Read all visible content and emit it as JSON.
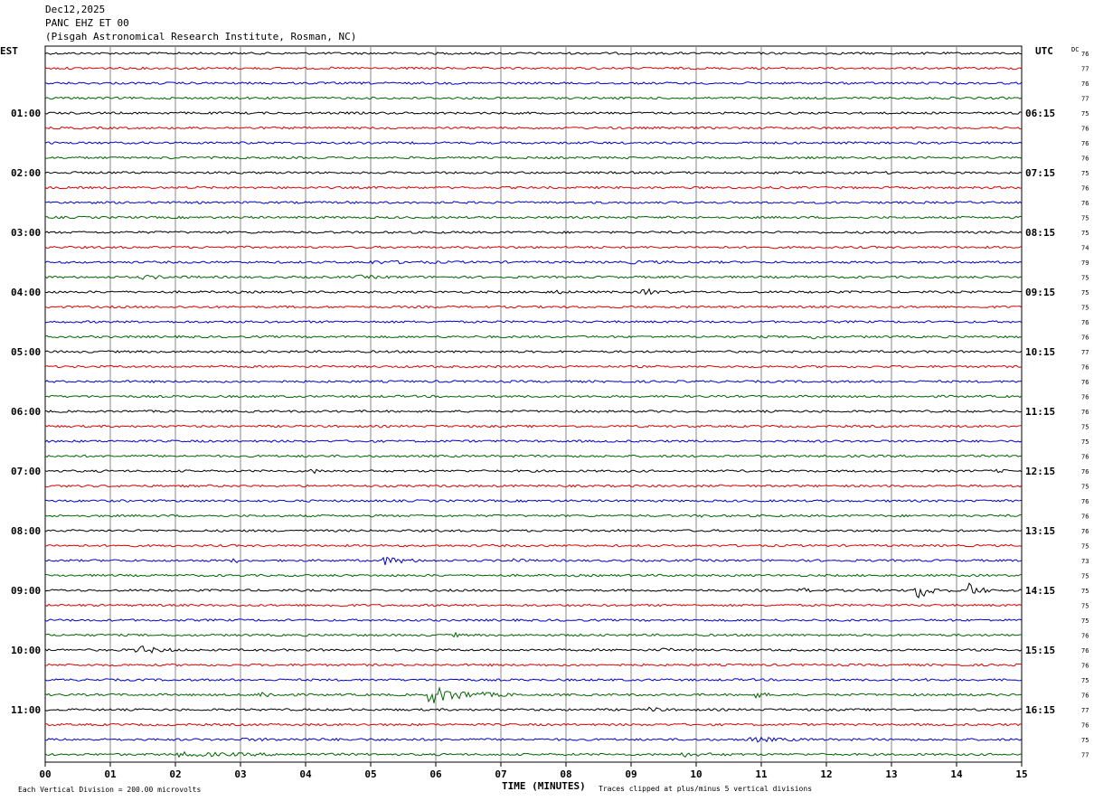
{
  "header": {
    "date": "Dec12,2025",
    "station": "PANC EHZ ET 00",
    "location": "(Pisgah Astronomical Research Institute, Rosman, NC)"
  },
  "labels": {
    "left_tz": "EST",
    "right_tz": "UTC",
    "dc": "DC",
    "xlabel": "TIME (MINUTES)",
    "scale_note": "Each Vertical Division =  200.00 microvolts",
    "clip_note": "Traces clipped at plus/minus 5 vertical divisions"
  },
  "chart_data": {
    "type": "line",
    "title": "PANC EHZ ET 00",
    "xlabel": "TIME (MINUTES)",
    "xlim": [
      0,
      15
    ],
    "x_ticks": [
      "00",
      "01",
      "02",
      "03",
      "04",
      "05",
      "06",
      "07",
      "08",
      "09",
      "10",
      "11",
      "12",
      "13",
      "14",
      "15"
    ],
    "left_hour_labels": [
      "01:00",
      "02:00",
      "03:00",
      "04:00",
      "05:00",
      "06:00",
      "07:00",
      "08:00",
      "09:00",
      "10:00",
      "11:00"
    ],
    "right_hour_labels": [
      "06:15",
      "07:15",
      "08:15",
      "09:15",
      "10:15",
      "11:15",
      "12:15",
      "13:15",
      "14:15",
      "15:15",
      "16:15"
    ],
    "trace_colors": [
      "#000000",
      "#dd0000",
      "#0000cc",
      "#006400"
    ],
    "trace_count": 48,
    "trace_interval_minutes": 15,
    "dc_offsets": [
      76,
      77,
      76,
      77,
      75,
      76,
      76,
      76,
      75,
      76,
      76,
      75,
      75,
      74,
      79,
      75,
      75,
      75,
      76,
      76,
      77,
      76,
      76,
      76,
      76,
      75,
      75,
      76,
      76,
      75,
      76,
      76,
      76,
      75,
      73,
      75,
      75,
      75,
      75,
      76,
      76,
      76,
      75,
      76,
      77,
      76,
      75,
      77
    ],
    "events": [
      {
        "trace": 4,
        "minute": 1.8,
        "amp": 1.2,
        "dur": 0.8
      },
      {
        "trace": 7,
        "minute": 1.9,
        "amp": 1.2,
        "dur": 0.5
      },
      {
        "trace": 8,
        "minute": 0.9,
        "amp": 1.2,
        "dur": 0.4
      },
      {
        "trace": 8,
        "minute": 12.9,
        "amp": 1.2,
        "dur": 0.4
      },
      {
        "trace": 9,
        "minute": 2.2,
        "amp": 1.3,
        "dur": 0.5
      },
      {
        "trace": 10,
        "minute": 0.5,
        "amp": 1.3,
        "dur": 0.4
      },
      {
        "trace": 10,
        "minute": 4.6,
        "amp": 1.5,
        "dur": 0.3
      },
      {
        "trace": 14,
        "minute": 5.0,
        "amp": 1.8,
        "dur": 2.5
      },
      {
        "trace": 14,
        "minute": 9.0,
        "amp": 1.7,
        "dur": 1.5
      },
      {
        "trace": 15,
        "minute": 1.5,
        "amp": 2.2,
        "dur": 1.0
      },
      {
        "trace": 15,
        "minute": 4.8,
        "amp": 2.0,
        "dur": 1.0
      },
      {
        "trace": 15,
        "minute": 11.5,
        "amp": 1.5,
        "dur": 0.8
      },
      {
        "trace": 16,
        "minute": 7.8,
        "amp": 2.5,
        "dur": 0.4
      },
      {
        "trace": 16,
        "minute": 9.2,
        "amp": 4.0,
        "dur": 0.5
      },
      {
        "trace": 19,
        "minute": 11.8,
        "amp": 3.0,
        "dur": 0.3
      },
      {
        "trace": 28,
        "minute": 4.1,
        "amp": 2.5,
        "dur": 0.5
      },
      {
        "trace": 28,
        "minute": 14.6,
        "amp": 2.0,
        "dur": 0.4
      },
      {
        "trace": 31,
        "minute": 10.1,
        "amp": 2.0,
        "dur": 0.2
      },
      {
        "trace": 32,
        "minute": 8.7,
        "amp": 1.5,
        "dur": 0.5
      },
      {
        "trace": 34,
        "minute": 2.9,
        "amp": 3.0,
        "dur": 0.2
      },
      {
        "trace": 34,
        "minute": 5.2,
        "amp": 4.5,
        "dur": 0.8
      },
      {
        "trace": 34,
        "minute": 7.2,
        "amp": 2.5,
        "dur": 0.3
      },
      {
        "trace": 36,
        "minute": 13.4,
        "amp": 10.0,
        "dur": 0.5
      },
      {
        "trace": 36,
        "minute": 14.2,
        "amp": 8.0,
        "dur": 0.4
      },
      {
        "trace": 36,
        "minute": 11.6,
        "amp": 2.5,
        "dur": 0.6
      },
      {
        "trace": 37,
        "minute": 4.4,
        "amp": 2.5,
        "dur": 0.4
      },
      {
        "trace": 39,
        "minute": 6.3,
        "amp": 2.5,
        "dur": 0.2
      },
      {
        "trace": 40,
        "minute": 1.4,
        "amp": 5.0,
        "dur": 0.8
      },
      {
        "trace": 40,
        "minute": 9.5,
        "amp": 2.5,
        "dur": 0.4
      },
      {
        "trace": 42,
        "minute": 13.5,
        "amp": 2.0,
        "dur": 0.3
      },
      {
        "trace": 43,
        "minute": 3.3,
        "amp": 4.0,
        "dur": 0.6
      },
      {
        "trace": 43,
        "minute": 5.9,
        "amp": 9.0,
        "dur": 1.4
      },
      {
        "trace": 43,
        "minute": 10.9,
        "amp": 3.5,
        "dur": 0.4
      },
      {
        "trace": 44,
        "minute": 9.3,
        "amp": 3.5,
        "dur": 0.3
      },
      {
        "trace": 46,
        "minute": 10.8,
        "amp": 3.0,
        "dur": 1.2
      },
      {
        "trace": 46,
        "minute": 3.0,
        "amp": 1.5,
        "dur": 4.0
      },
      {
        "trace": 47,
        "minute": 2.0,
        "amp": 2.5,
        "dur": 3.0
      },
      {
        "trace": 47,
        "minute": 9.8,
        "amp": 2.5,
        "dur": 1.0
      }
    ]
  }
}
